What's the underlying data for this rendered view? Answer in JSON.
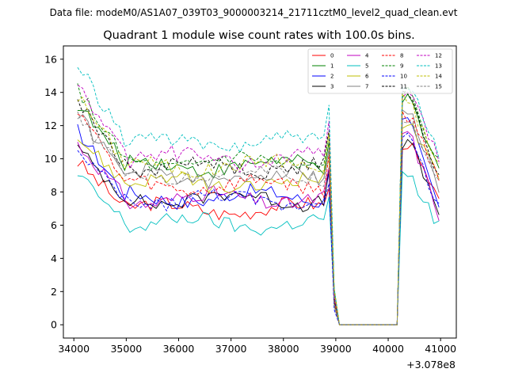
{
  "figure": {
    "suptitle": "Data file: modeM0/AS1A07_039T03_9000003214_21711cztM0_level2_quad_clean.evt",
    "offset_label": "+3.078e8"
  },
  "chart_data": {
    "type": "line",
    "title": "Quadrant 1 module wise count rates with 100.0s bins.",
    "xlabel": "",
    "ylabel": "",
    "x_offset": 307800000,
    "xlim": [
      33800,
      41300
    ],
    "ylim": [
      -0.8,
      16.8
    ],
    "xticks": [
      34000,
      35000,
      36000,
      37000,
      38000,
      39000,
      40000,
      41000
    ],
    "yticks": [
      0,
      2,
      4,
      6,
      8,
      10,
      12,
      14,
      16
    ],
    "x": {
      "start": 34070,
      "step": 100,
      "count": 70
    },
    "legend_location": "upper right",
    "legend_columns": 4,
    "series": [
      {
        "name": "0",
        "color": "#ff0000",
        "dash": "solid",
        "start": 9.8,
        "plateau": 7.0,
        "post": 11.0,
        "end": 7.0
      },
      {
        "name": "1",
        "color": "#008000",
        "dash": "solid",
        "start": 13.3,
        "plateau": 9.6,
        "post": 13.5,
        "end": 9.0
      },
      {
        "name": "2",
        "color": "#0000ff",
        "dash": "solid",
        "start": 11.7,
        "plateau": 7.7,
        "post": 12.2,
        "end": 6.8
      },
      {
        "name": "3",
        "color": "#000000",
        "dash": "solid",
        "start": 10.6,
        "plateau": 7.6,
        "post": 11.0,
        "end": 6.6
      },
      {
        "name": "4",
        "color": "#c000c0",
        "dash": "solid",
        "start": 10.9,
        "plateau": 7.6,
        "post": 11.6,
        "end": 6.4
      },
      {
        "name": "5",
        "color": "#00bfbf",
        "dash": "solid",
        "start": 9.0,
        "plateau": 6.1,
        "post": 9.0,
        "end": 5.8
      },
      {
        "name": "6",
        "color": "#bfbf00",
        "dash": "solid",
        "start": 11.3,
        "plateau": 8.5,
        "post": 12.2,
        "end": 8.5
      },
      {
        "name": "7",
        "color": "#808080",
        "dash": "solid",
        "start": 12.7,
        "plateau": 8.9,
        "post": 13.0,
        "end": 7.8
      },
      {
        "name": "8",
        "color": "#ff0000",
        "dash": "dashed",
        "start": 13.1,
        "plateau": 8.4,
        "post": 12.6,
        "end": 8.8
      },
      {
        "name": "9",
        "color": "#008000",
        "dash": "dashed",
        "start": 14.2,
        "plateau": 9.8,
        "post": 14.0,
        "end": 9.4
      },
      {
        "name": "10",
        "color": "#0000ff",
        "dash": "dashed",
        "start": 10.3,
        "plateau": 7.5,
        "post": 11.3,
        "end": 6.9
      },
      {
        "name": "11",
        "color": "#000000",
        "dash": "dashed",
        "start": 13.5,
        "plateau": 9.5,
        "post": 13.8,
        "end": 8.8
      },
      {
        "name": "12",
        "color": "#c000c0",
        "dash": "dashed",
        "start": 14.5,
        "plateau": 10.0,
        "post": 14.0,
        "end": 9.8
      },
      {
        "name": "13",
        "color": "#00bfbf",
        "dash": "dashed",
        "start": 15.7,
        "plateau": 11.0,
        "post": 14.3,
        "end": 10.2
      },
      {
        "name": "14",
        "color": "#bfbf00",
        "dash": "dashed",
        "start": 13.8,
        "plateau": 9.6,
        "post": 13.6,
        "end": 9.2
      },
      {
        "name": "15",
        "color": "#808080",
        "dash": "dashed",
        "start": 12.4,
        "plateau": 9.1,
        "post": 12.5,
        "end": 8.4
      }
    ]
  }
}
